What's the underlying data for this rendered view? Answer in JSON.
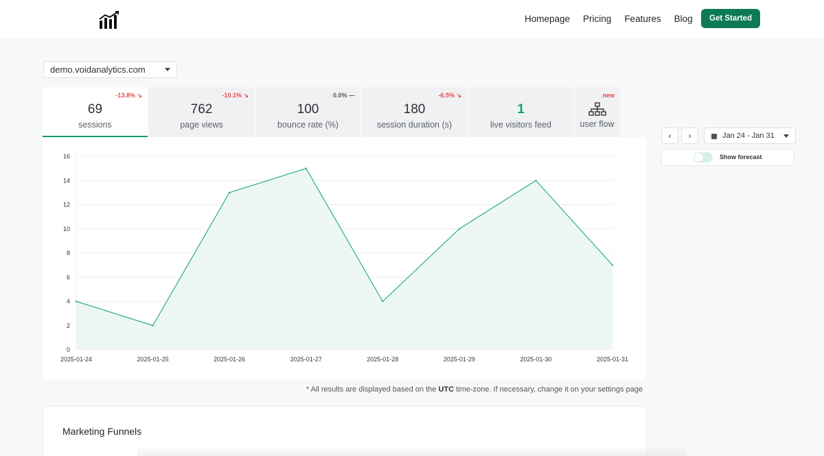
{
  "nav": {
    "logo_icon": "bar-chart-trend-icon",
    "links": [
      "Homepage",
      "Pricing",
      "Features",
      "Blog"
    ],
    "cta_label": "Get Started",
    "cta_color": "#0d7a57"
  },
  "site_selector": {
    "value": "demo.voidanalytics.com"
  },
  "stats": [
    {
      "value": "69",
      "label": "sessions",
      "delta": "-13.8% ↘"
    },
    {
      "value": "762",
      "label": "page views",
      "delta": "-10.1% ↘"
    },
    {
      "value": "100",
      "label": "bounce rate (%)",
      "delta": "0.0% —"
    },
    {
      "value": "180",
      "label": "session duration (s)",
      "delta": "-6.5% ↘"
    },
    {
      "value": "1",
      "label": "live visitors feed"
    },
    {
      "label": "user flow",
      "badge": "new",
      "icon": "sitemap-icon"
    }
  ],
  "chart_data": {
    "type": "area",
    "x": [
      "2025-01-24",
      "2025-01-25",
      "2025-01-26",
      "2025-01-27",
      "2025-01-28",
      "2025-01-29",
      "2025-01-30",
      "2025-01-31"
    ],
    "values": [
      4,
      2,
      13,
      15,
      4,
      10,
      14,
      7
    ],
    "yticks": [
      0,
      2,
      4,
      6,
      8,
      10,
      12,
      14,
      16
    ],
    "ylim": [
      0,
      16
    ],
    "grid": true,
    "line_color": "#2bb07a",
    "fill_color": "#eef8f3"
  },
  "date_controls": {
    "prev_icon": "chevron-left-icon",
    "next_icon": "chevron-right-icon",
    "prev": "‹",
    "next": "›",
    "range": "Jan 24 - Jan 31"
  },
  "forecast": {
    "label": "Show forecast",
    "enabled": false
  },
  "timezone_note": {
    "prefix": "* All results are displayed based on the ",
    "tz": "UTC",
    "suffix": " time-zone. If necessary, change it on your settings page"
  },
  "funnels": {
    "title": "Marketing Funnels"
  }
}
